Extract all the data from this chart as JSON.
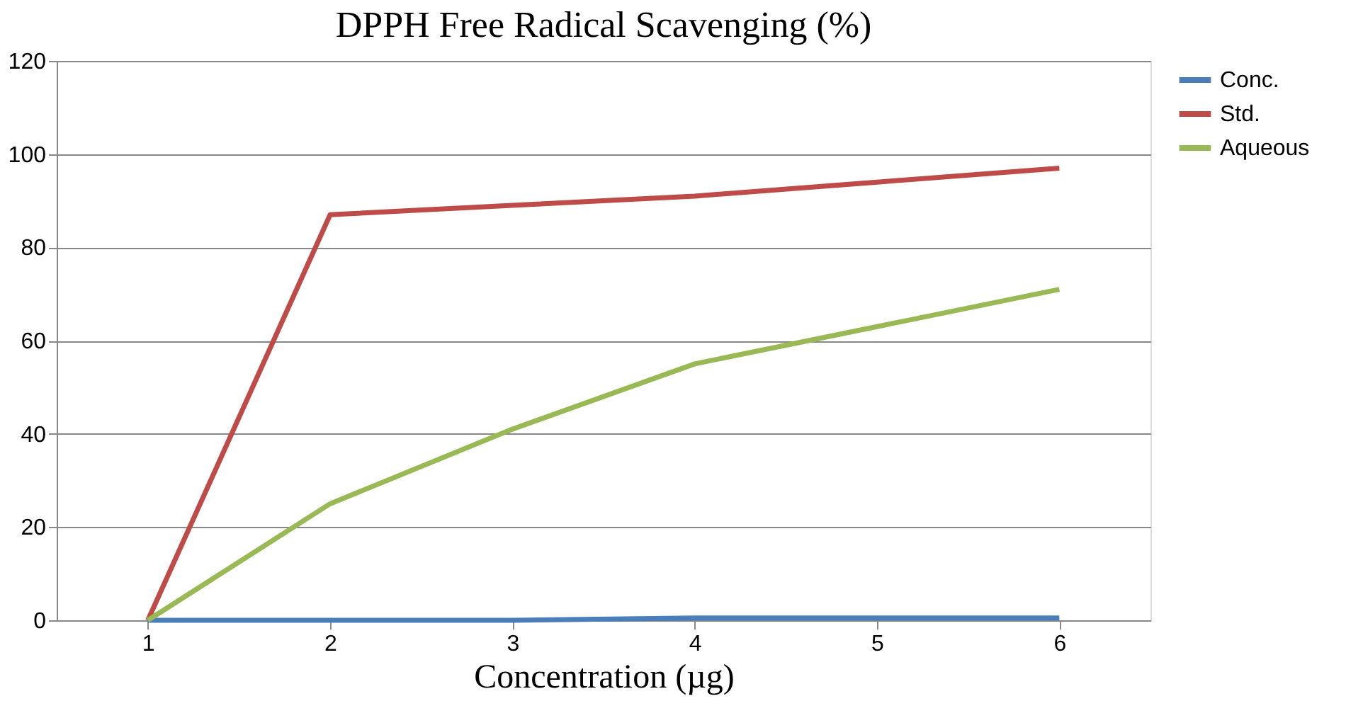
{
  "chart_data": {
    "type": "line",
    "title": "DPPH Free Radical Scavenging (%)",
    "xlabel": "Concentration (µg)",
    "categories": [
      "1",
      "2",
      "3",
      "4",
      "5",
      "6"
    ],
    "series": [
      {
        "name": "Conc.",
        "color": "#4a7ebb",
        "values": [
          0,
          0,
          0,
          0.5,
          0.5,
          0.5
        ]
      },
      {
        "name": "Std.",
        "color": "#be4b48",
        "values": [
          0,
          87,
          89,
          91,
          94,
          97
        ]
      },
      {
        "name": "Aqueous",
        "color": "#98b954",
        "values": [
          0,
          25,
          41,
          55,
          63,
          71
        ]
      }
    ],
    "ylim": [
      0,
      120
    ],
    "yticks": [
      0,
      20,
      40,
      60,
      80,
      100,
      120
    ],
    "grid": "y",
    "legend": "right",
    "marker": "none",
    "line_style": "solid"
  }
}
